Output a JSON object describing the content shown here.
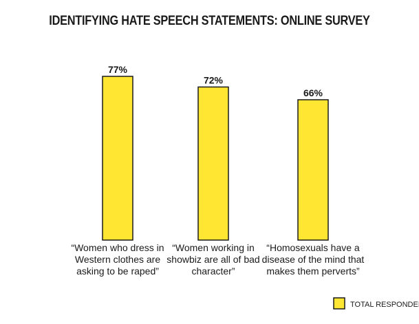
{
  "chart_data": {
    "type": "bar",
    "title": "IDENTIFYING HATE SPEECH STATEMENTS: ONLINE SURVEY",
    "categories": [
      [
        "“Women who dress in",
        "Western clothes are",
        "asking to be raped”"
      ],
      [
        "“Women working in",
        "showbiz are all of bad",
        "character”"
      ],
      [
        "“Homosexuals have a",
        "disease of the mind that",
        "makes them perverts”"
      ]
    ],
    "series": [
      {
        "name": "TOTAL RESPONDENTS",
        "values": [
          77,
          72,
          66
        ],
        "labels": [
          "77%",
          "72%",
          "66%"
        ],
        "color": "#FFE632"
      }
    ],
    "ylim": [
      0,
      100
    ],
    "grid": false,
    "legend": "bottom-right",
    "xlabel": "",
    "ylabel": ""
  }
}
